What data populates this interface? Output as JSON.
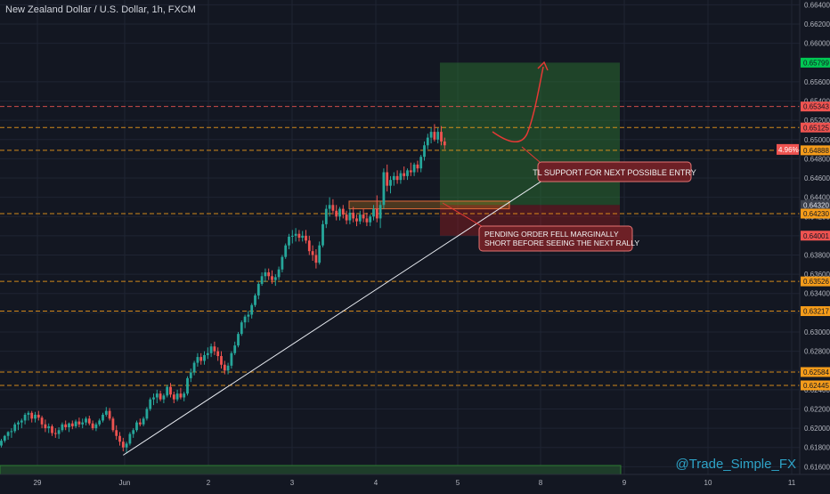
{
  "header": {
    "title": "New Zealand Dollar / U.S. Dollar, 1h, FXCM"
  },
  "watermark": "@Trade_Simple_FX",
  "colors": {
    "background": "#131722",
    "grid": "#1f2433",
    "up": "#26a69a",
    "down": "#ef5350",
    "level_orange": "#f59c1a",
    "level_red": "#ef5350",
    "trendline": "#e9ecf2",
    "target_zone": "#1b5e20",
    "stop_zone": "#7b1a1a"
  },
  "chart_data": {
    "type": "candlestick",
    "ylim": [
      0.6152,
      0.6645
    ],
    "y_ticks": [
      "0.66400",
      "0.66200",
      "0.66000",
      "0.65600",
      "0.65400",
      "0.65200",
      "0.65000",
      "0.64800",
      "0.64600",
      "0.64400",
      "0.64200",
      "0.64000",
      "0.63800",
      "0.63600",
      "0.63400",
      "0.63200",
      "0.63000",
      "0.62800",
      "0.62600",
      "0.62400",
      "0.62200",
      "0.62000",
      "0.61800",
      "0.61600"
    ],
    "x_ticks": [
      "29",
      "Jun",
      "2",
      "3",
      "4",
      "5",
      "8",
      "9",
      "10",
      "11"
    ],
    "price_tags": [
      {
        "value": "0.65799",
        "kind": "green"
      },
      {
        "value": "0.65343",
        "kind": "red"
      },
      {
        "value": "0.65125",
        "kind": "red"
      },
      {
        "value": "0.64888",
        "kind": "orange"
      },
      {
        "value": "0.64320",
        "kind": "gray"
      },
      {
        "value": "0.64230",
        "kind": "orange"
      },
      {
        "value": "0.64001",
        "kind": "red"
      },
      {
        "value": "0.63526",
        "kind": "orange"
      },
      {
        "value": "0.63217",
        "kind": "orange"
      },
      {
        "value": "0.62584",
        "kind": "orange"
      },
      {
        "value": "0.62445",
        "kind": "orange"
      }
    ],
    "change_badge": "4.96%",
    "levels": [
      {
        "value": 0.65343,
        "color": "red"
      },
      {
        "value": 0.65125,
        "color": "orange"
      },
      {
        "value": 0.64888,
        "color": "orange"
      },
      {
        "value": 0.6423,
        "color": "orange"
      },
      {
        "value": 0.63526,
        "color": "orange"
      },
      {
        "value": 0.63217,
        "color": "orange"
      },
      {
        "value": 0.62584,
        "color": "orange"
      },
      {
        "value": 0.62445,
        "color": "orange"
      }
    ],
    "annotations": [
      {
        "text": "TL SUPPORT FOR NEXT POSSIBLE ENTRY"
      },
      {
        "text": [
          "PENDING ORDER FELL MARGINALLY",
          "SHORT BEFORE SEEING THE NEXT RALLY"
        ]
      }
    ],
    "position": {
      "target": 0.65799,
      "entry": 0.6432,
      "stop": 0.64001
    },
    "candles": [
      [
        0.6182,
        0.6189,
        0.618,
        0.6187
      ],
      [
        0.6187,
        0.6193,
        0.6185,
        0.6192
      ],
      [
        0.6192,
        0.6197,
        0.6188,
        0.6196
      ],
      [
        0.6196,
        0.62,
        0.619,
        0.6197
      ],
      [
        0.6197,
        0.6206,
        0.6195,
        0.6204
      ],
      [
        0.6204,
        0.6208,
        0.6198,
        0.6206
      ],
      [
        0.6206,
        0.621,
        0.62,
        0.6208
      ],
      [
        0.6208,
        0.6216,
        0.6204,
        0.6214
      ],
      [
        0.6214,
        0.6218,
        0.6208,
        0.6216
      ],
      [
        0.6216,
        0.6218,
        0.6206,
        0.621
      ],
      [
        0.621,
        0.6217,
        0.6206,
        0.6214
      ],
      [
        0.6214,
        0.6218,
        0.6208,
        0.6211
      ],
      [
        0.6211,
        0.6213,
        0.62,
        0.6204
      ],
      [
        0.6204,
        0.6209,
        0.6196,
        0.62
      ],
      [
        0.62,
        0.6205,
        0.6195,
        0.6202
      ],
      [
        0.6202,
        0.6204,
        0.6192,
        0.6195
      ],
      [
        0.6195,
        0.62,
        0.619,
        0.6194
      ],
      [
        0.6194,
        0.6201,
        0.6189,
        0.6198
      ],
      [
        0.6198,
        0.6206,
        0.6196,
        0.6204
      ],
      [
        0.6204,
        0.6208,
        0.6198,
        0.6201
      ],
      [
        0.6201,
        0.6206,
        0.6196,
        0.6205
      ],
      [
        0.6205,
        0.6208,
        0.6199,
        0.6202
      ],
      [
        0.6202,
        0.6209,
        0.62,
        0.6207
      ],
      [
        0.6207,
        0.6211,
        0.6201,
        0.6204
      ],
      [
        0.6204,
        0.621,
        0.62,
        0.6206
      ],
      [
        0.6206,
        0.6212,
        0.6203,
        0.621
      ],
      [
        0.621,
        0.6213,
        0.6203,
        0.6205
      ],
      [
        0.6205,
        0.6208,
        0.6198,
        0.62
      ],
      [
        0.62,
        0.6206,
        0.6197,
        0.6204
      ],
      [
        0.6204,
        0.621,
        0.6202,
        0.6208
      ],
      [
        0.6208,
        0.6216,
        0.6206,
        0.6214
      ],
      [
        0.6214,
        0.6222,
        0.6212,
        0.6218
      ],
      [
        0.6218,
        0.6221,
        0.6208,
        0.621
      ],
      [
        0.621,
        0.6212,
        0.6196,
        0.6198
      ],
      [
        0.6198,
        0.6203,
        0.6188,
        0.6192
      ],
      [
        0.6192,
        0.6196,
        0.6182,
        0.6186
      ],
      [
        0.6186,
        0.619,
        0.6176,
        0.618
      ],
      [
        0.618,
        0.6186,
        0.6174,
        0.6184
      ],
      [
        0.6184,
        0.6196,
        0.6182,
        0.6194
      ],
      [
        0.6194,
        0.62,
        0.619,
        0.6198
      ],
      [
        0.6198,
        0.6208,
        0.6196,
        0.6206
      ],
      [
        0.6206,
        0.621,
        0.6202,
        0.6204
      ],
      [
        0.6204,
        0.6212,
        0.6202,
        0.621
      ],
      [
        0.621,
        0.6222,
        0.6208,
        0.622
      ],
      [
        0.622,
        0.6232,
        0.6218,
        0.623
      ],
      [
        0.623,
        0.6236,
        0.6224,
        0.6232
      ],
      [
        0.6232,
        0.624,
        0.6226,
        0.6236
      ],
      [
        0.6236,
        0.6239,
        0.6228,
        0.623
      ],
      [
        0.623,
        0.6236,
        0.6226,
        0.6234
      ],
      [
        0.6234,
        0.6245,
        0.6232,
        0.6243
      ],
      [
        0.6243,
        0.6247,
        0.6232,
        0.6235
      ],
      [
        0.6235,
        0.6238,
        0.6226,
        0.623
      ],
      [
        0.623,
        0.624,
        0.6228,
        0.6236
      ],
      [
        0.6236,
        0.6242,
        0.623,
        0.6232
      ],
      [
        0.6232,
        0.6238,
        0.6228,
        0.6236
      ],
      [
        0.6236,
        0.6254,
        0.6234,
        0.6252
      ],
      [
        0.6252,
        0.6262,
        0.6248,
        0.6258
      ],
      [
        0.6258,
        0.627,
        0.6255,
        0.6268
      ],
      [
        0.6268,
        0.6278,
        0.6264,
        0.6274
      ],
      [
        0.6274,
        0.6278,
        0.6266,
        0.627
      ],
      [
        0.627,
        0.628,
        0.6266,
        0.6276
      ],
      [
        0.6276,
        0.6284,
        0.6272,
        0.6278
      ],
      [
        0.6278,
        0.6288,
        0.6274,
        0.6285
      ],
      [
        0.6285,
        0.629,
        0.6276,
        0.628
      ],
      [
        0.628,
        0.6284,
        0.627,
        0.6275
      ],
      [
        0.6275,
        0.628,
        0.6262,
        0.6266
      ],
      [
        0.6266,
        0.627,
        0.6256,
        0.626
      ],
      [
        0.626,
        0.6268,
        0.6256,
        0.6265
      ],
      [
        0.6265,
        0.628,
        0.6262,
        0.6278
      ],
      [
        0.6278,
        0.629,
        0.6276,
        0.6286
      ],
      [
        0.6286,
        0.63,
        0.6284,
        0.6298
      ],
      [
        0.6298,
        0.6312,
        0.6296,
        0.631
      ],
      [
        0.631,
        0.6318,
        0.6304,
        0.6316
      ],
      [
        0.6316,
        0.6322,
        0.631,
        0.6318
      ],
      [
        0.6318,
        0.633,
        0.6314,
        0.6328
      ],
      [
        0.6328,
        0.634,
        0.6326,
        0.6338
      ],
      [
        0.6338,
        0.6352,
        0.6334,
        0.635
      ],
      [
        0.635,
        0.6362,
        0.6348,
        0.6358
      ],
      [
        0.6358,
        0.6366,
        0.6352,
        0.6362
      ],
      [
        0.6362,
        0.6366,
        0.6354,
        0.6358
      ],
      [
        0.6358,
        0.6364,
        0.635,
        0.6354
      ],
      [
        0.6354,
        0.636,
        0.6348,
        0.6357
      ],
      [
        0.6357,
        0.6368,
        0.6354,
        0.6365
      ],
      [
        0.6365,
        0.638,
        0.6362,
        0.6378
      ],
      [
        0.6378,
        0.6392,
        0.6376,
        0.639
      ],
      [
        0.639,
        0.6402,
        0.6386,
        0.6399
      ],
      [
        0.6399,
        0.6406,
        0.6392,
        0.64
      ],
      [
        0.64,
        0.6408,
        0.6394,
        0.6402
      ],
      [
        0.6402,
        0.6406,
        0.6394,
        0.6398
      ],
      [
        0.6398,
        0.6405,
        0.6394,
        0.64
      ],
      [
        0.64,
        0.6406,
        0.6392,
        0.6395
      ],
      [
        0.6395,
        0.64,
        0.638,
        0.6384
      ],
      [
        0.6384,
        0.639,
        0.6374,
        0.638
      ],
      [
        0.638,
        0.6386,
        0.6366,
        0.6372
      ],
      [
        0.6372,
        0.6394,
        0.637,
        0.639
      ],
      [
        0.639,
        0.6416,
        0.6388,
        0.6412
      ],
      [
        0.6412,
        0.6432,
        0.6408,
        0.6428
      ],
      [
        0.6428,
        0.644,
        0.642,
        0.6432
      ],
      [
        0.6432,
        0.6438,
        0.6422,
        0.6426
      ],
      [
        0.6426,
        0.6432,
        0.6416,
        0.642
      ],
      [
        0.642,
        0.643,
        0.6416,
        0.6428
      ],
      [
        0.6428,
        0.6432,
        0.6418,
        0.6422
      ],
      [
        0.6422,
        0.6426,
        0.6412,
        0.6416
      ],
      [
        0.6416,
        0.6428,
        0.6412,
        0.6424
      ],
      [
        0.6424,
        0.643,
        0.6414,
        0.6418
      ],
      [
        0.6418,
        0.6422,
        0.641,
        0.6415
      ],
      [
        0.6415,
        0.6426,
        0.6412,
        0.6422
      ],
      [
        0.6422,
        0.6428,
        0.6414,
        0.6418
      ],
      [
        0.6418,
        0.6424,
        0.641,
        0.6414
      ],
      [
        0.6414,
        0.6422,
        0.641,
        0.642
      ],
      [
        0.642,
        0.6432,
        0.6416,
        0.6428
      ],
      [
        0.6428,
        0.6442,
        0.6414,
        0.6418
      ],
      [
        0.6418,
        0.6436,
        0.6408,
        0.6432
      ],
      [
        0.6432,
        0.647,
        0.6428,
        0.6466
      ],
      [
        0.6466,
        0.6474,
        0.6446,
        0.6452
      ],
      [
        0.6452,
        0.6462,
        0.6444,
        0.6458
      ],
      [
        0.6458,
        0.6466,
        0.6452,
        0.6462
      ],
      [
        0.6462,
        0.6468,
        0.6454,
        0.6458
      ],
      [
        0.6458,
        0.6468,
        0.6454,
        0.6465
      ],
      [
        0.6465,
        0.6472,
        0.6458,
        0.6462
      ],
      [
        0.6462,
        0.647,
        0.6458,
        0.6468
      ],
      [
        0.6468,
        0.6476,
        0.6462,
        0.6466
      ],
      [
        0.6466,
        0.6476,
        0.6462,
        0.6474
      ],
      [
        0.6474,
        0.6478,
        0.6466,
        0.647
      ],
      [
        0.647,
        0.6484,
        0.6466,
        0.6482
      ],
      [
        0.6482,
        0.6498,
        0.6478,
        0.6494
      ],
      [
        0.6494,
        0.6506,
        0.649,
        0.6502
      ],
      [
        0.6502,
        0.6512,
        0.6496,
        0.6508
      ],
      [
        0.6508,
        0.6516,
        0.6498,
        0.65
      ],
      [
        0.65,
        0.6512,
        0.6496,
        0.6508
      ],
      [
        0.6508,
        0.6514,
        0.6494,
        0.6498
      ],
      [
        0.6498,
        0.6502,
        0.649,
        0.6494
      ]
    ],
    "trendline": {
      "from": {
        "candle": 36,
        "price": 0.6172
      },
      "to": {
        "candle": 181,
        "price": 0.6506
      }
    }
  }
}
